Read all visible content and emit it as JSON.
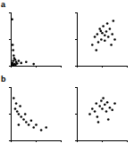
{
  "chart_data": [
    {
      "type": "scatter",
      "title": "a",
      "color": "#000000",
      "marker": "circle",
      "tick_labels": false,
      "x": [
        2,
        3,
        4,
        5,
        6,
        4,
        8,
        10,
        3,
        12,
        15,
        20,
        7,
        9,
        30,
        45,
        5,
        2
      ],
      "values": [
        88,
        40,
        30,
        20,
        15,
        10,
        12,
        8,
        6,
        5,
        10,
        6,
        4,
        3,
        8,
        4,
        2,
        3
      ],
      "xlim": [
        0,
        100
      ],
      "ylim": [
        0,
        100
      ],
      "xticks": [
        0,
        50,
        100
      ],
      "yticks": [
        0,
        50,
        100
      ]
    },
    {
      "type": "scatter",
      "color": "#000000",
      "marker": "circle",
      "tick_labels": false,
      "x": [
        30,
        35,
        40,
        42,
        45,
        48,
        50,
        52,
        55,
        58,
        60,
        62,
        65,
        70,
        72,
        75,
        38,
        68,
        55,
        47
      ],
      "values": [
        40,
        55,
        60,
        45,
        70,
        50,
        62,
        75,
        58,
        65,
        80,
        55,
        70,
        60,
        85,
        50,
        30,
        40,
        48,
        66
      ],
      "xlim": [
        0,
        100
      ],
      "ylim": [
        0,
        100
      ],
      "xticks": [
        0,
        50,
        100
      ],
      "yticks": [
        0,
        50,
        100
      ]
    },
    {
      "type": "scatter",
      "title": "b",
      "color": "#000000",
      "marker": "circle",
      "tick_labels": false,
      "x": [
        5,
        8,
        10,
        12,
        15,
        18,
        20,
        25,
        30,
        35,
        40,
        45,
        50,
        60,
        70,
        15,
        28
      ],
      "values": [
        80,
        60,
        70,
        55,
        50,
        65,
        45,
        40,
        35,
        30,
        38,
        25,
        30,
        20,
        25,
        30,
        50
      ],
      "xlim": [
        0,
        100
      ],
      "ylim": [
        0,
        100
      ],
      "xticks": [
        0,
        50,
        100
      ],
      "yticks": [
        0,
        50,
        100
      ]
    },
    {
      "type": "scatter",
      "color": "#000000",
      "marker": "circle",
      "tick_labels": false,
      "x": [
        25,
        30,
        35,
        38,
        40,
        45,
        48,
        50,
        55,
        58,
        60,
        65,
        70,
        75,
        42,
        52,
        62
      ],
      "values": [
        50,
        60,
        55,
        70,
        45,
        65,
        75,
        60,
        68,
        55,
        72,
        62,
        58,
        70,
        35,
        80,
        40
      ],
      "xlim": [
        0,
        100
      ],
      "ylim": [
        0,
        100
      ],
      "xticks": [
        0,
        50,
        100
      ],
      "yticks": [
        0,
        50,
        100
      ]
    }
  ]
}
